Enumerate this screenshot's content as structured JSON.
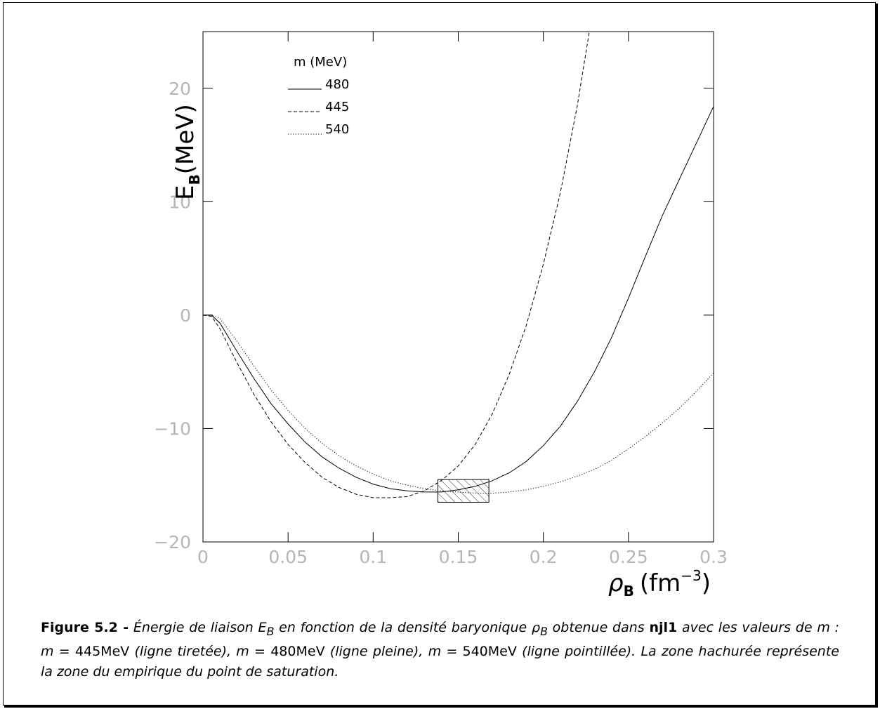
{
  "chart_data": {
    "type": "line",
    "xlabel_var": "ρ",
    "xlabel_sub": "B",
    "xlabel_unit": "(fm",
    "xlabel_exp": "−3",
    "xlabel_close": ")",
    "ylabel_var": "E",
    "ylabel_sub": "B",
    "ylabel_unit": "(MeV)",
    "xlim": [
      0,
      0.3
    ],
    "ylim": [
      -20,
      25
    ],
    "x_ticks": [
      "0",
      "0.05",
      "0.1",
      "0.15",
      "0.2",
      "0.25",
      "0.3"
    ],
    "y_ticks": [
      "−20",
      "−10",
      "0",
      "10",
      "20"
    ],
    "legend_title": "m (MeV)",
    "legend_placement": "top-left",
    "series": [
      {
        "name": "480",
        "style": "solid",
        "x": [
          0,
          0.005,
          0.01,
          0.02,
          0.03,
          0.04,
          0.05,
          0.06,
          0.07,
          0.08,
          0.09,
          0.1,
          0.11,
          0.12,
          0.13,
          0.14,
          0.15,
          0.16,
          0.17,
          0.18,
          0.19,
          0.2,
          0.21,
          0.22,
          0.23,
          0.24,
          0.25,
          0.26,
          0.27,
          0.28,
          0.29,
          0.3
        ],
        "y": [
          0,
          0,
          -0.7,
          -3.2,
          -5.6,
          -7.8,
          -9.6,
          -11.2,
          -12.5,
          -13.5,
          -14.3,
          -14.9,
          -15.3,
          -15.5,
          -15.6,
          -15.6,
          -15.4,
          -15.1,
          -14.6,
          -13.9,
          -12.9,
          -11.5,
          -9.8,
          -7.6,
          -5.0,
          -2.0,
          1.5,
          5.2,
          8.8,
          12.0,
          15.2,
          18.4
        ]
      },
      {
        "name": "445",
        "style": "dashed",
        "x": [
          0,
          0.005,
          0.01,
          0.02,
          0.03,
          0.04,
          0.05,
          0.06,
          0.07,
          0.08,
          0.09,
          0.1,
          0.11,
          0.12,
          0.13,
          0.14,
          0.15,
          0.16,
          0.17,
          0.18,
          0.19,
          0.2,
          0.21,
          0.22,
          0.227
        ],
        "y": [
          0,
          -0.1,
          -1.2,
          -4.2,
          -7.0,
          -9.4,
          -11.4,
          -13.0,
          -14.3,
          -15.2,
          -15.8,
          -16.1,
          -16.1,
          -16.0,
          -15.5,
          -14.6,
          -13.3,
          -11.4,
          -8.7,
          -5.2,
          -0.9,
          4.5,
          10.8,
          18.5,
          25.0
        ]
      },
      {
        "name": "540",
        "style": "dotted",
        "x": [
          0,
          0.005,
          0.01,
          0.02,
          0.03,
          0.04,
          0.05,
          0.06,
          0.07,
          0.08,
          0.09,
          0.1,
          0.11,
          0.12,
          0.13,
          0.14,
          0.15,
          0.16,
          0.17,
          0.18,
          0.19,
          0.2,
          0.21,
          0.22,
          0.23,
          0.24,
          0.25,
          0.26,
          0.27,
          0.28,
          0.29,
          0.3
        ],
        "y": [
          0,
          0,
          -0.3,
          -2.3,
          -4.5,
          -6.6,
          -8.4,
          -10.0,
          -11.3,
          -12.4,
          -13.3,
          -14.0,
          -14.6,
          -15.0,
          -15.3,
          -15.5,
          -15.6,
          -15.7,
          -15.7,
          -15.6,
          -15.4,
          -15.1,
          -14.7,
          -14.2,
          -13.6,
          -12.8,
          -11.8,
          -10.7,
          -9.5,
          -8.2,
          -6.7,
          -5.1
        ]
      }
    ],
    "saturation_box": {
      "x": [
        0.138,
        0.168
      ],
      "y": [
        -16.5,
        -14.5
      ]
    }
  },
  "caption": {
    "label": "Figure 5.2 -",
    "t1": " Énergie de liaison ",
    "m1": "E",
    "m1sub": "B",
    "t2": " en fonction de la densité baryonique ",
    "m2": "ρ",
    "m2sub": "B",
    "t3": " obtenue dans ",
    "model": "njl1",
    "t4": " avec les valeurs de ",
    "t5": "m : m = ",
    "v1": "445MeV",
    "t6": " (ligne tiretée), ",
    "t7": "m = ",
    "v2": "480MeV",
    "t8": " (ligne pleine), ",
    "t9": "m = ",
    "v3": "540MeV",
    "t10": " (ligne pointillée). La zone hachurée représente la zone du empirique du point de saturation."
  }
}
